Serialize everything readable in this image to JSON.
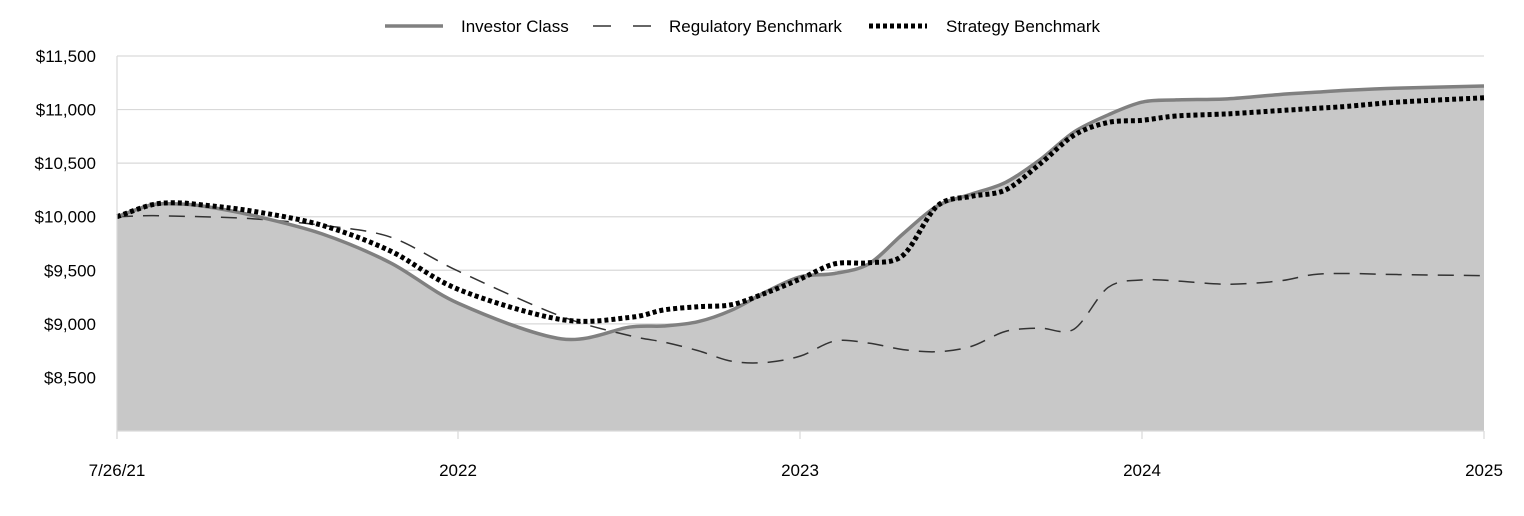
{
  "chart_data": {
    "type": "area",
    "title": "",
    "xlabel": "",
    "ylabel": "",
    "x_tick_labels": [
      "7/26/21",
      "2022",
      "2023",
      "2024",
      "2025"
    ],
    "y_tick_labels": [
      "$8,500",
      "$9,000",
      "$9,500",
      "$10,000",
      "$10,500",
      "$11,000",
      "$11,500"
    ],
    "y_ticks": [
      8500,
      9000,
      9500,
      10000,
      10500,
      11000,
      11500
    ],
    "ylim": [
      8000,
      11500
    ],
    "xlim": [
      2021.5,
      2025.5
    ],
    "grid": true,
    "legend_position": "top-center",
    "series": [
      {
        "name": "Investor Class",
        "style": "solid",
        "filled": true,
        "color": "#808080",
        "fill_color": "#c8c8c8",
        "x": [
          2021.5,
          2021.6,
          2021.67,
          2021.75,
          2021.9,
          2022.1,
          2022.3,
          2022.5,
          2022.8,
          2023.0,
          2023.1,
          2023.2,
          2023.3,
          2023.4,
          2023.5,
          2023.6,
          2023.7,
          2023.8,
          2023.9,
          2024.0,
          2024.1,
          2024.2,
          2024.3,
          2024.4,
          2024.5,
          2024.6,
          2024.75,
          2024.9,
          2025.0,
          2025.1,
          2025.25,
          2025.5
        ],
        "y": [
          10000,
          10110,
          10120,
          10100,
          10010,
          9840,
          9570,
          9190,
          8860,
          8970,
          8980,
          9020,
          9130,
          9300,
          9440,
          9470,
          9560,
          9840,
          10100,
          10210,
          10320,
          10530,
          10790,
          10950,
          11070,
          11090,
          11100,
          11140,
          11160,
          11180,
          11200,
          11220
        ]
      },
      {
        "name": "Regulatory Benchmark",
        "style": "dashed",
        "filled": false,
        "color": "#333333",
        "x": [
          2021.5,
          2021.6,
          2021.67,
          2021.75,
          2021.9,
          2022.1,
          2022.3,
          2022.5,
          2022.8,
          2023.0,
          2023.1,
          2023.2,
          2023.3,
          2023.4,
          2023.5,
          2023.6,
          2023.7,
          2023.8,
          2023.9,
          2024.0,
          2024.1,
          2024.2,
          2024.3,
          2024.4,
          2024.5,
          2024.6,
          2024.75,
          2024.9,
          2025.0,
          2025.1,
          2025.25,
          2025.5
        ],
        "y": [
          10000,
          10010,
          10005,
          10000,
          9980,
          9920,
          9810,
          9490,
          9070,
          8890,
          8830,
          8750,
          8650,
          8640,
          8700,
          8840,
          8820,
          8760,
          8740,
          8790,
          8930,
          8960,
          8950,
          9340,
          9410,
          9400,
          9370,
          9400,
          9460,
          9470,
          9460,
          9450
        ]
      },
      {
        "name": "Strategy Benchmark",
        "style": "dotted",
        "filled": false,
        "color": "#000000",
        "x": [
          2021.5,
          2021.6,
          2021.67,
          2021.75,
          2021.9,
          2022.1,
          2022.3,
          2022.5,
          2022.8,
          2023.0,
          2023.1,
          2023.2,
          2023.3,
          2023.4,
          2023.5,
          2023.6,
          2023.7,
          2023.8,
          2023.9,
          2024.0,
          2024.1,
          2024.2,
          2024.3,
          2024.4,
          2024.5,
          2024.6,
          2024.75,
          2024.9,
          2025.0,
          2025.1,
          2025.25,
          2025.5
        ],
        "y": [
          10000,
          10110,
          10130,
          10110,
          10050,
          9920,
          9680,
          9320,
          9040,
          9060,
          9130,
          9160,
          9180,
          9290,
          9420,
          9560,
          9570,
          9640,
          10100,
          10190,
          10250,
          10490,
          10760,
          10880,
          10900,
          10940,
          10960,
          10990,
          11010,
          11030,
          11070,
          11110
        ]
      }
    ]
  }
}
